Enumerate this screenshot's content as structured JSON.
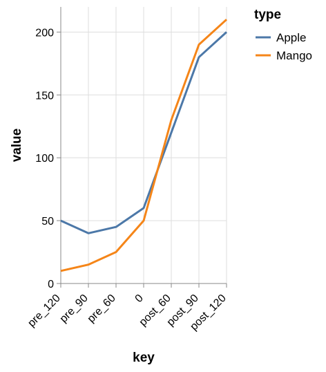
{
  "chart_data": {
    "type": "line",
    "x_title": "key",
    "y_title": "value",
    "categories": [
      "pre_120",
      "pre_90",
      "pre_60",
      "0",
      "post_60",
      "post_90",
      "post_120"
    ],
    "ylim": [
      0,
      220
    ],
    "yticks": [
      0,
      50,
      100,
      150,
      200
    ],
    "grid": true,
    "legend": {
      "title": "type",
      "placement": "top-right"
    },
    "series": [
      {
        "name": "Apple",
        "color": "#4c78a8",
        "values": [
          50,
          40,
          45,
          60,
          120,
          180,
          200
        ]
      },
      {
        "name": "Mango",
        "color": "#f58518",
        "values": [
          10,
          15,
          25,
          50,
          130,
          190,
          210
        ]
      }
    ]
  }
}
